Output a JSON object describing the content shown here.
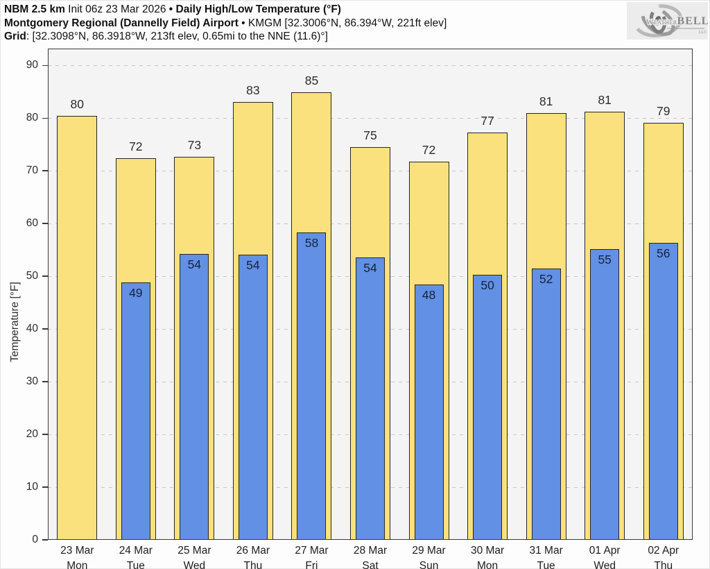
{
  "header": {
    "line1": {
      "model": "NBM 2.5 km",
      "init": " Init 06z 23 Mar 2026 ",
      "product": "• Daily High/Low Temperature (°F)"
    },
    "line2": {
      "station": "Montgomery Regional (Dannelly Field) Airport",
      "meta": " • KMGM [32.3006°N, 86.394°W, 221ft elev]"
    },
    "line3": {
      "label": "Grid",
      "value": ": [32.3098°N, 86.3918°W, 213ft elev, 0.65mi to the NNE (11.6)°]"
    }
  },
  "logo": {
    "name": "WeatherBELL",
    "text_main": "Weather",
    "text_bold": "BELL",
    "sub": "LLC"
  },
  "colors": {
    "high_fill": "#FAE17D",
    "low_fill": "#6290E4",
    "bar_border": "#262626",
    "plot_bg": "#F4F4F4",
    "grid": "#C6C6C6",
    "spine": "#3A3A3A",
    "text": "#2B2B2B",
    "low_label_text": "#15233C",
    "logo_bg": "#ECECEC",
    "logo_gray": "#8F8F8F"
  },
  "chart_data": {
    "type": "bar",
    "title": "Daily High/Low Temperature (°F)",
    "xlabel": "",
    "ylabel": "Temperature [°F]",
    "ylim": [
      0,
      93.2
    ],
    "yticks": [
      0,
      10,
      20,
      30,
      40,
      50,
      60,
      70,
      80,
      90
    ],
    "grid": "horizontal dashed at each ytick",
    "legend": "none",
    "categories": [
      "23 Mar Mon",
      "24 Mar Tue",
      "25 Mar Wed",
      "26 Mar Thu",
      "27 Mar Fri",
      "28 Mar Sat",
      "29 Mar Sun",
      "30 Mar Mon",
      "31 Mar Tue",
      "01 Apr Wed",
      "02 Apr Thu"
    ],
    "series": [
      {
        "name": "High",
        "color": "#FAE17D",
        "values": [
          80,
          72,
          73,
          83,
          85,
          75,
          72,
          77,
          81,
          81,
          79
        ]
      },
      {
        "name": "Low",
        "color": "#6290E4",
        "values": [
          null,
          49,
          54,
          54,
          58,
          54,
          48,
          50,
          52,
          55,
          56
        ]
      }
    ],
    "days": [
      {
        "date": "23 Mar",
        "day": "Mon",
        "high": 80,
        "low": null,
        "high_y": 80.4,
        "low_y": null
      },
      {
        "date": "24 Mar",
        "day": "Tue",
        "high": 72,
        "low": 49,
        "high_y": 72.4,
        "low_y": 48.8
      },
      {
        "date": "25 Mar",
        "day": "Wed",
        "high": 73,
        "low": 54,
        "high_y": 72.6,
        "low_y": 54.3
      },
      {
        "date": "26 Mar",
        "day": "Thu",
        "high": 83,
        "low": 54,
        "high_y": 83.1,
        "low_y": 54.1
      },
      {
        "date": "27 Mar",
        "day": "Fri",
        "high": 85,
        "low": 58,
        "high_y": 84.9,
        "low_y": 58.3
      },
      {
        "date": "28 Mar",
        "day": "Sat",
        "high": 75,
        "low": 54,
        "high_y": 74.5,
        "low_y": 53.6
      },
      {
        "date": "29 Mar",
        "day": "Sun",
        "high": 72,
        "low": 48,
        "high_y": 71.8,
        "low_y": 48.4
      },
      {
        "date": "30 Mar",
        "day": "Mon",
        "high": 77,
        "low": 50,
        "high_y": 77.3,
        "low_y": 50.3
      },
      {
        "date": "31 Mar",
        "day": "Tue",
        "high": 81,
        "low": 52,
        "high_y": 80.9,
        "low_y": 51.5
      },
      {
        "date": "01 Apr",
        "day": "Wed",
        "high": 81,
        "low": 55,
        "high_y": 81.2,
        "low_y": 55.1
      },
      {
        "date": "02 Apr",
        "day": "Thu",
        "high": 79,
        "low": 56,
        "high_y": 79.1,
        "low_y": 56.4
      }
    ]
  }
}
